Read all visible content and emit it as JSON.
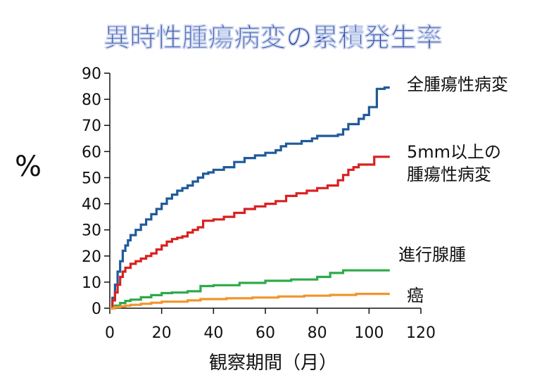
{
  "chart_data": {
    "type": "line",
    "title": "異時性腫瘍病変の累積発生率",
    "xlabel": "観察期間（月）",
    "ylabel": "%",
    "xlim": [
      0,
      120
    ],
    "ylim": [
      0,
      90
    ],
    "xticks": [
      0,
      20,
      40,
      60,
      80,
      100,
      120
    ],
    "yticks": [
      0,
      10,
      20,
      30,
      40,
      50,
      60,
      70,
      80,
      90
    ],
    "grid": false,
    "series": [
      {
        "name": "全腫瘍性病変",
        "label_lines": [
          "全腫瘍性病変"
        ],
        "color": "#1f5a9a",
        "x": [
          0,
          1,
          2,
          3,
          4,
          5,
          6,
          7,
          8,
          10,
          12,
          14,
          16,
          18,
          20,
          22,
          24,
          26,
          28,
          30,
          32,
          34,
          36,
          38,
          40,
          44,
          48,
          52,
          56,
          60,
          64,
          66,
          68,
          70,
          74,
          78,
          80,
          84,
          88,
          90,
          92,
          94,
          96,
          98,
          100,
          102,
          103,
          104,
          106,
          108
        ],
        "y": [
          0,
          4,
          9,
          14,
          18,
          22,
          24,
          26,
          28,
          30,
          32,
          34,
          36,
          38,
          40,
          42,
          43.5,
          45,
          46,
          47,
          48.5,
          50,
          51.5,
          52,
          53,
          54,
          56,
          57.5,
          58.5,
          59.5,
          60.5,
          62,
          63,
          63,
          64,
          65,
          66,
          66,
          66.5,
          68.5,
          70.5,
          70.5,
          72.5,
          74,
          77,
          77,
          84,
          84,
          84.5,
          84.5
        ]
      },
      {
        "name": "5mm以上の腫瘍性病変",
        "label_lines": [
          "5mm以上の",
          "腫瘍性病変"
        ],
        "color": "#d92020",
        "x": [
          0,
          1,
          2,
          3,
          4,
          5,
          6,
          8,
          10,
          12,
          14,
          16,
          18,
          20,
          22,
          24,
          26,
          28,
          30,
          32,
          34,
          36,
          40,
          44,
          48,
          52,
          56,
          60,
          64,
          68,
          72,
          76,
          80,
          84,
          88,
          90,
          92,
          94,
          96,
          100,
          102,
          104,
          108
        ],
        "y": [
          0,
          3,
          6,
          9,
          12,
          14,
          15.5,
          17,
          18,
          19,
          20,
          21,
          22.5,
          24,
          25.5,
          26.5,
          27,
          27.5,
          29,
          30,
          31,
          33.5,
          34,
          35,
          36.5,
          38,
          39,
          40,
          41,
          43,
          44,
          45,
          46,
          47,
          49,
          51,
          53,
          54,
          55,
          55,
          58,
          58,
          58
        ]
      },
      {
        "name": "進行腺腫",
        "label_lines": [
          "進行腺腫"
        ],
        "color": "#2eaa4a",
        "x": [
          0,
          2,
          4,
          6,
          8,
          12,
          16,
          20,
          24,
          30,
          35,
          40,
          50,
          60,
          70,
          80,
          85,
          90,
          100,
          108
        ],
        "y": [
          0,
          1,
          2,
          2.8,
          3.3,
          4.2,
          5,
          5.8,
          6,
          6.5,
          8.5,
          8.8,
          9.7,
          10.5,
          11,
          12,
          13.5,
          14.5,
          14.5,
          14.5
        ]
      },
      {
        "name": "癌",
        "label_lines": [
          "癌"
        ],
        "color": "#f0952a",
        "x": [
          0,
          2,
          4,
          6,
          8,
          12,
          16,
          20,
          30,
          35,
          45,
          55,
          65,
          75,
          85,
          95,
          108
        ],
        "y": [
          0,
          0.4,
          0.7,
          1,
          1.3,
          1.7,
          2.1,
          2.5,
          3,
          3.5,
          3.8,
          4.1,
          4.5,
          4.8,
          5.1,
          5.5,
          5.5
        ]
      }
    ]
  }
}
